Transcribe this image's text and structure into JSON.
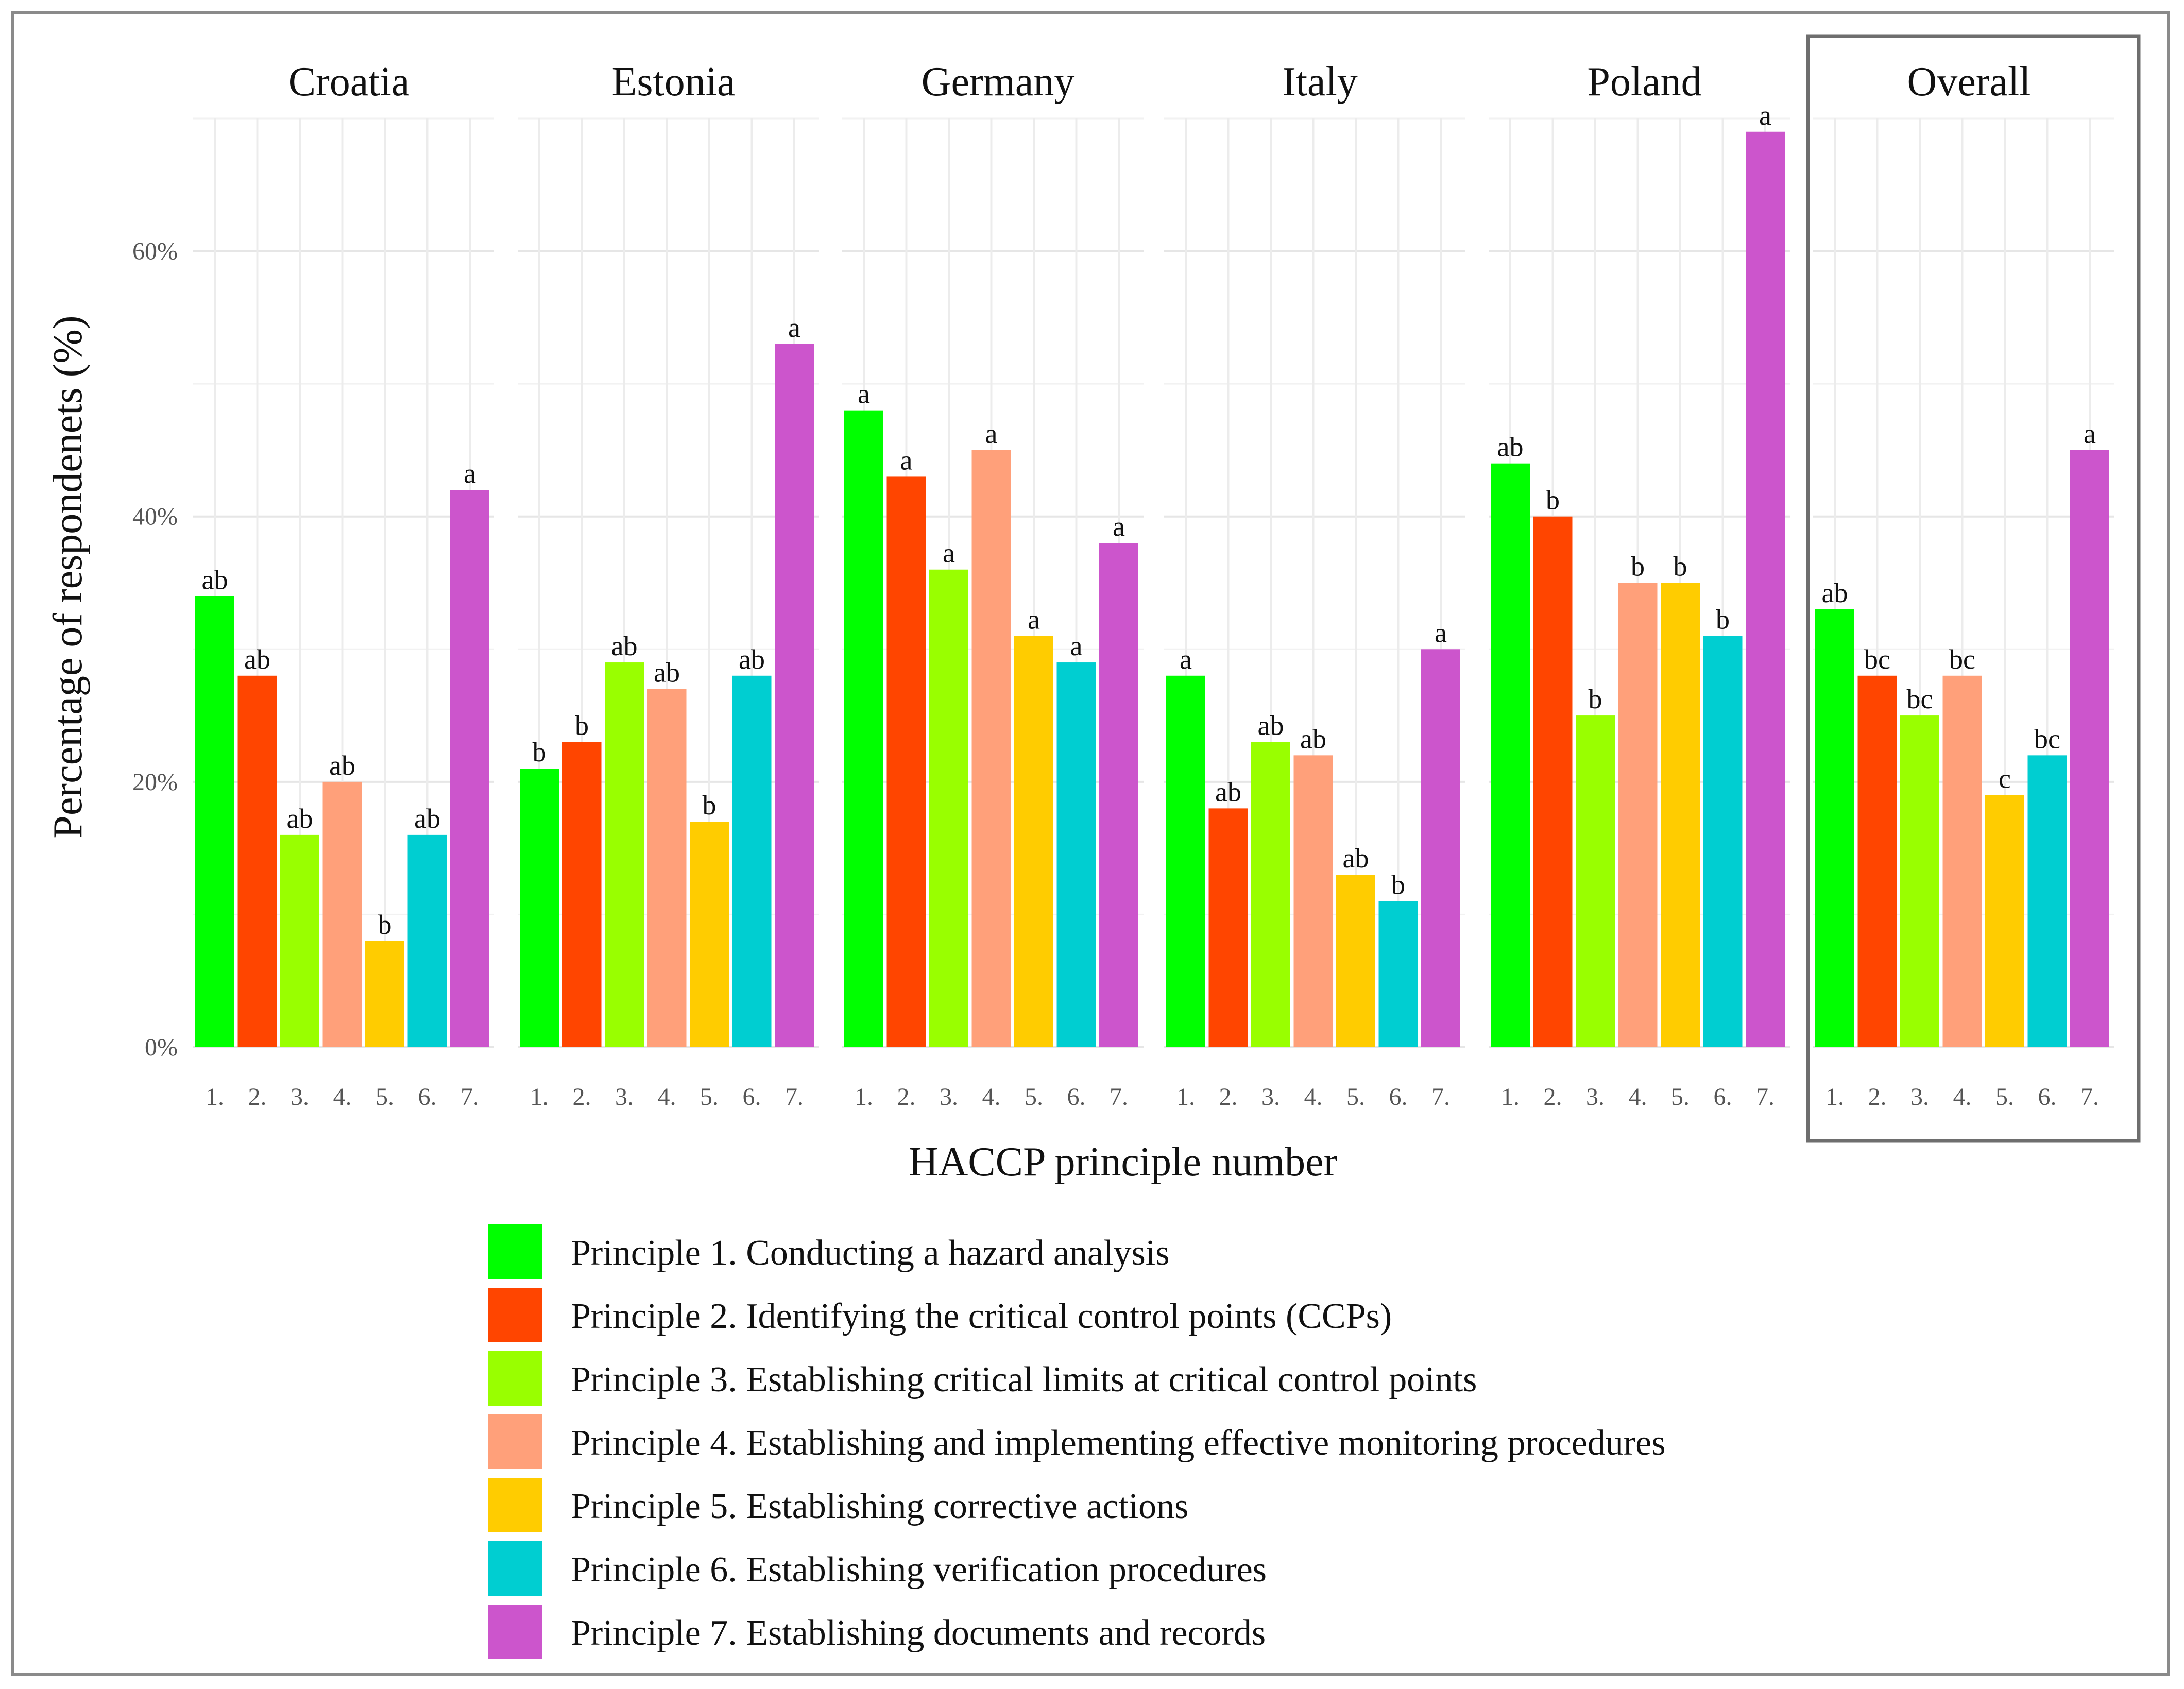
{
  "chart_data": {
    "type": "bar",
    "title": "",
    "xlabel": "HACCP principle number",
    "ylabel": "Percentage of respondenets (%)",
    "ylim": [
      0,
      70
    ],
    "yticks": [
      0,
      20,
      40,
      60
    ],
    "yticklabels": [
      "0%",
      "20%",
      "40%",
      "60%"
    ],
    "grid": true,
    "categories": [
      "1.",
      "2.",
      "3.",
      "4.",
      "5.",
      "6.",
      "7."
    ],
    "colors": [
      "#00ff00",
      "#ff4500",
      "#99ff00",
      "#ffa07a",
      "#ffcc00",
      "#00ced1",
      "#cc55cc"
    ],
    "panels": [
      {
        "name": "Croatia",
        "values": [
          34,
          28,
          16,
          20,
          8,
          16,
          42
        ],
        "labels": [
          "ab",
          "ab",
          "ab",
          "ab",
          "b",
          "ab",
          "a"
        ]
      },
      {
        "name": "Estonia",
        "values": [
          21,
          23,
          29,
          27,
          17,
          28,
          53
        ],
        "labels": [
          "b",
          "b",
          "ab",
          "ab",
          "b",
          "ab",
          "a"
        ]
      },
      {
        "name": "Germany",
        "values": [
          48,
          43,
          36,
          45,
          31,
          29,
          38
        ],
        "labels": [
          "a",
          "a",
          "a",
          "a",
          "a",
          "a",
          "a"
        ]
      },
      {
        "name": "Italy",
        "values": [
          28,
          18,
          23,
          22,
          13,
          11,
          30
        ],
        "labels": [
          "a",
          "ab",
          "ab",
          "ab",
          "ab",
          "b",
          "a"
        ]
      },
      {
        "name": "Poland",
        "values": [
          44,
          40,
          25,
          35,
          35,
          31,
          69
        ],
        "labels": [
          "ab",
          "b",
          "b",
          "b",
          "b",
          "b",
          "a"
        ]
      },
      {
        "name": "Overall",
        "values": [
          33,
          28,
          25,
          28,
          19,
          22,
          45
        ],
        "labels": [
          "ab",
          "bc",
          "bc",
          "bc",
          "c",
          "bc",
          "a"
        ],
        "highlighted": true
      }
    ],
    "legend": {
      "placement": "bottom",
      "entries": [
        "Principle 1. Conducting a hazard analysis",
        "Principle 2. Identifying the critical control points (CCPs)",
        "Principle 3. Establishing critical limits at critical control points",
        "Principle 4. Establishing and implementing effective monitoring procedures",
        "Principle 5. Establishing corrective actions",
        "Principle 6. Establishing verification procedures",
        "Principle 7. Establishing documents and records"
      ]
    }
  }
}
